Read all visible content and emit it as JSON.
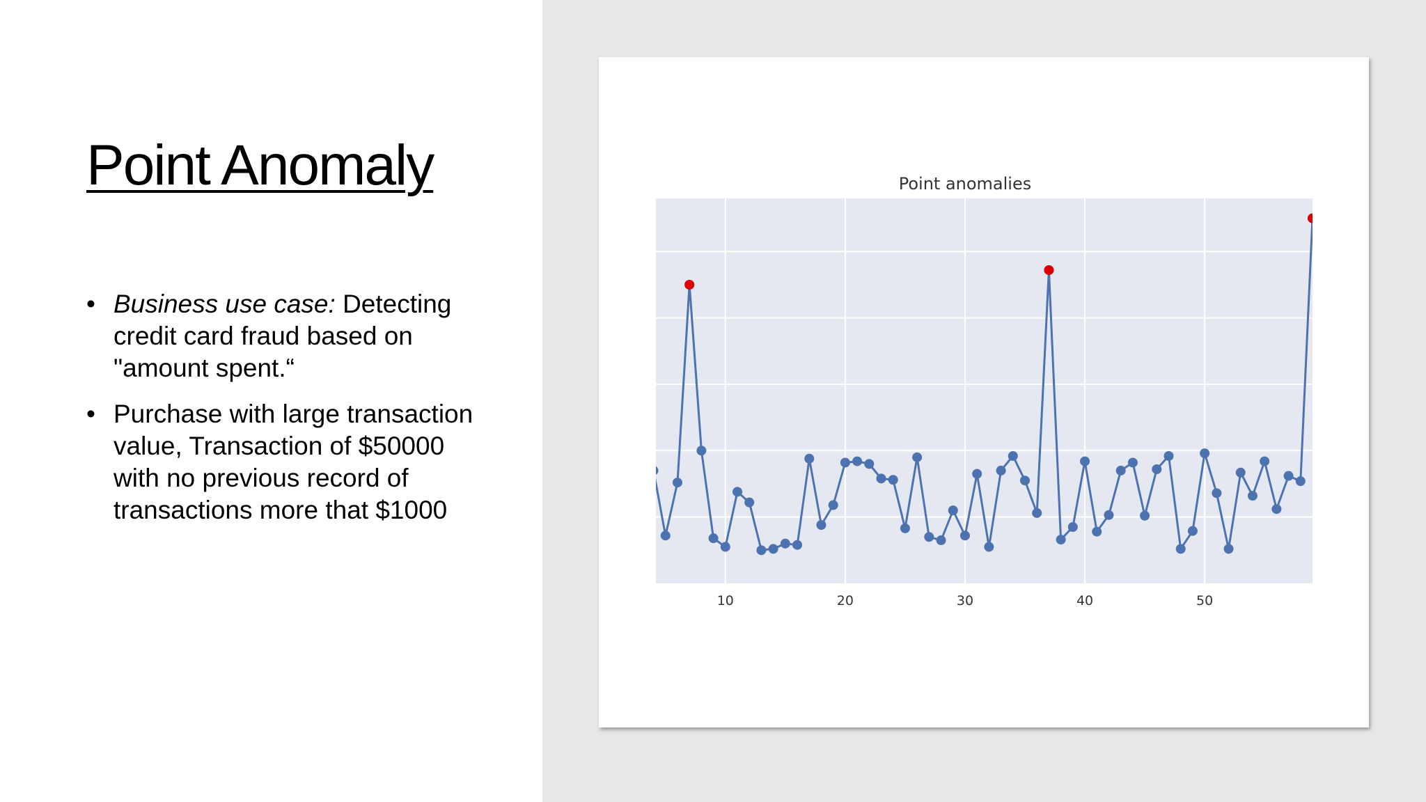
{
  "slide": {
    "title": "Point Anomaly",
    "bullets": [
      {
        "italic_prefix": "Business use case:",
        "text": " Detecting credit card fraud based on \"amount spent.“"
      },
      {
        "italic_prefix": "",
        "text": "Purchase with large transaction value, Transaction of $50000 with no previous record of transactions more that $1000"
      }
    ]
  },
  "colors": {
    "left_background": "#ffffff",
    "right_background": "#e7e7e7",
    "plot_background": "#e5e8f0",
    "line": "#4c72b0",
    "anomaly": "#dd0000",
    "grid": "#ffffff"
  },
  "chart_data": {
    "type": "line",
    "title": "Point anomalies",
    "xlabel": "",
    "ylabel": "",
    "xlim": [
      4.2,
      59
    ],
    "ylim": [
      0,
      5.8
    ],
    "grid": true,
    "x_ticks": [
      10,
      20,
      30,
      40,
      50
    ],
    "y_tick_values": [
      1,
      2,
      3,
      4,
      5
    ],
    "show_y_tick_labels": false,
    "x": [
      4,
      5,
      6,
      7,
      8,
      9,
      10,
      11,
      12,
      13,
      14,
      15,
      16,
      17,
      18,
      19,
      20,
      21,
      22,
      23,
      24,
      25,
      26,
      27,
      28,
      29,
      30,
      31,
      32,
      33,
      34,
      35,
      36,
      37,
      38,
      39,
      40,
      41,
      42,
      43,
      44,
      45,
      46,
      47,
      48,
      49,
      50,
      51,
      52,
      53,
      54,
      55,
      56,
      57,
      58,
      59
    ],
    "series": [
      {
        "values": [
          1.7,
          0.72,
          1.52,
          4.5,
          2.0,
          0.68,
          0.55,
          1.38,
          1.22,
          0.5,
          0.52,
          0.6,
          0.58,
          1.88,
          0.88,
          1.18,
          1.82,
          1.84,
          1.8,
          1.58,
          1.56,
          0.83,
          1.9,
          0.7,
          0.65,
          1.1,
          0.72,
          1.65,
          0.55,
          1.7,
          1.92,
          1.55,
          1.06,
          4.72,
          0.66,
          0.85,
          1.84,
          0.78,
          1.03,
          1.7,
          1.82,
          1.02,
          1.72,
          1.92,
          0.52,
          0.79,
          1.96,
          1.36,
          0.52,
          1.67,
          1.32,
          1.84,
          1.12,
          1.62,
          1.54,
          5.5
        ]
      }
    ],
    "anomalies": [
      {
        "x": 7,
        "y": 4.5
      },
      {
        "x": 37,
        "y": 4.72
      },
      {
        "x": 59,
        "y": 5.5
      }
    ]
  }
}
